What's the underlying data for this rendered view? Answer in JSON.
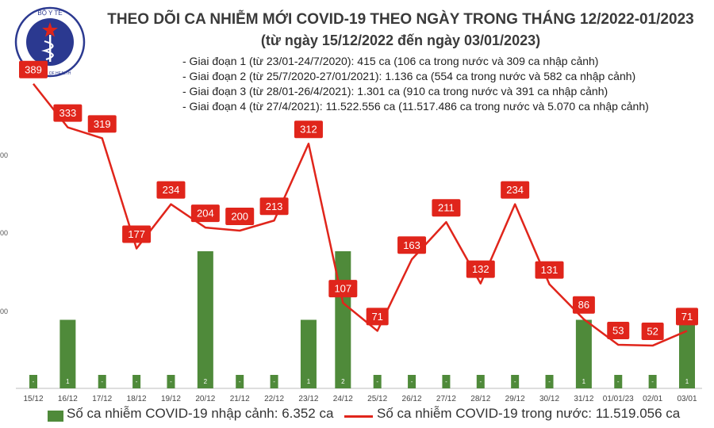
{
  "header": {
    "title": "THEO DÕI CA NHIỄM MỚI COVID-19 THEO NGÀY TRONG THÁNG 12/2022-01/2023",
    "subtitle": "(từ ngày 15/12/2022 đến ngày 03/01/2023)",
    "logo_text": "BỘ Y TẾ",
    "logo_subtext": "MINISTRY OF HEALTH"
  },
  "phases": [
    "- Giai đoạn 1 (từ 23/01-24/7/2020): 415 ca (106 ca trong nước và 309 ca nhập cảnh)",
    "- Giai đoạn 2 (từ 25/7/2020-27/01/2021): 1.136 ca (554 ca trong nước và 582 ca nhập cảnh)",
    "- Giai đoạn 3 (từ 28/01-26/4/2021): 1.301 ca (910 ca trong nước và 391 ca nhập cảnh)",
    "- Giai đoạn 4 (từ 27/4/2021): 11.522.556 ca (11.517.486 ca trong nước và 5.070 ca nhập cảnh)"
  ],
  "colors": {
    "bar": "#4f8a3a",
    "line": "#e0251b",
    "label_text": "#ffffff"
  },
  "chart_data": {
    "type": "bar+line",
    "categories": [
      "15/12",
      "16/12",
      "17/12",
      "18/12",
      "19/12",
      "20/12",
      "21/12",
      "22/12",
      "23/12",
      "24/12",
      "25/12",
      "26/12",
      "27/12",
      "28/12",
      "29/12",
      "30/12",
      "31/12",
      "01/01/23",
      "02/01",
      "03/01"
    ],
    "series": [
      {
        "name": "Số ca nhiễm COVID-19 nhập cảnh: 6.352 ca",
        "type": "bar",
        "axis": "right",
        "values": [
          0,
          1,
          0,
          0,
          0,
          2,
          0,
          0,
          1,
          2,
          0,
          0,
          0,
          0,
          0,
          0,
          1,
          0,
          0,
          1
        ],
        "labels": [
          "-",
          "1",
          "-",
          "-",
          "-",
          "2",
          "-",
          "-",
          "1",
          "2",
          "-",
          "-",
          "-",
          "-",
          "-",
          "-",
          "1",
          "-",
          "-",
          "1"
        ]
      },
      {
        "name": "Số ca nhiễm COVID-19 trong nước: 11.519.056 ca",
        "type": "line",
        "axis": "left",
        "values": [
          389,
          333,
          319,
          177,
          234,
          204,
          200,
          213,
          312,
          107,
          71,
          163,
          211,
          132,
          234,
          131,
          86,
          53,
          52,
          71
        ]
      }
    ],
    "left_axis": {
      "ticks": [
        "",
        "00",
        "00",
        "00"
      ]
    },
    "right_axis": {
      "ticks": [
        "",
        "",
        "",
        "",
        "",
        ""
      ]
    },
    "legend_position": "bottom"
  }
}
